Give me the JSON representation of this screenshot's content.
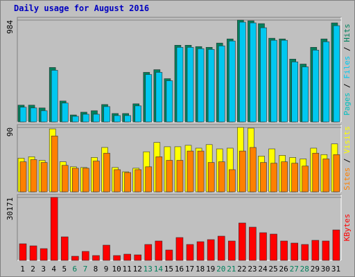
{
  "title": "Daily usage for August 2016",
  "chart_data": [
    {
      "type": "bar",
      "ylim": [
        0,
        984
      ],
      "yticks": [
        984
      ],
      "series": [
        {
          "name": "Hits",
          "color": "#00805c",
          "values": [
            162,
            162,
            135,
            526,
            202,
            67,
            94,
            108,
            168,
            81,
            81,
            175,
            479,
            505,
            418,
            741,
            741,
            728,
            721,
            762,
            802,
            984,
            977,
            950,
            809,
            802,
            607,
            559,
            721,
            802,
            957
          ]
        },
        {
          "name": "Files",
          "color": "#00c8f0",
          "values": [
            142,
            135,
            108,
            499,
            182,
            54,
            74,
            74,
            148,
            61,
            61,
            155,
            458,
            479,
            398,
            721,
            721,
            708,
            701,
            735,
            782,
            964,
            957,
            910,
            789,
            789,
            580,
            532,
            694,
            775,
            930
          ]
        }
      ],
      "extra_legend": {
        "name": "Pages",
        "color": "#00c0c0"
      }
    },
    {
      "type": "bar",
      "ylim": [
        0,
        90
      ],
      "yticks": [
        90
      ],
      "series": [
        {
          "name": "Visits",
          "color": "#ffff00",
          "values": [
            47,
            49,
            44,
            88,
            42,
            35,
            34,
            48,
            62,
            34,
            28,
            33,
            56,
            69,
            63,
            63,
            65,
            61,
            66,
            60,
            61,
            90,
            89,
            50,
            60,
            51,
            48,
            46,
            61,
            52,
            67
          ]
        },
        {
          "name": "Sites",
          "color": "#ff8000",
          "values": [
            42,
            45,
            41,
            78,
            37,
            33,
            33,
            43,
            54,
            31,
            27,
            31,
            35,
            49,
            44,
            44,
            57,
            57,
            41,
            42,
            31,
            57,
            62,
            41,
            40,
            42,
            40,
            36,
            54,
            46,
            52
          ]
        }
      ]
    },
    {
      "type": "bar",
      "ylim": [
        0,
        30171
      ],
      "yticks": [
        30171
      ],
      "categories": [
        "1",
        "2",
        "3",
        "4",
        "5",
        "6",
        "7",
        "8",
        "9",
        "10",
        "11",
        "12",
        "13",
        "14",
        "15",
        "16",
        "17",
        "18",
        "19",
        "20",
        "21",
        "22",
        "23",
        "24",
        "25",
        "26",
        "27",
        "28",
        "29",
        "30",
        "31"
      ],
      "highlight_categories": [
        "6",
        "7",
        "13",
        "14",
        "20",
        "21",
        "27",
        "28"
      ],
      "highlight_color": "#00805c",
      "series": [
        {
          "name": "KBytes",
          "color": "#ff0000",
          "values": [
            7957,
            6962,
            5636,
            30171,
            11273,
            1989,
            4310,
            2321,
            7294,
            2321,
            2984,
            2652,
            7626,
            9283,
            4973,
            10941,
            7626,
            8952,
            9947,
            11604,
            9283,
            17904,
            15915,
            13262,
            12599,
            9283,
            8289,
            7626,
            9615,
            9283,
            14588
          ]
        }
      ]
    }
  ]
}
